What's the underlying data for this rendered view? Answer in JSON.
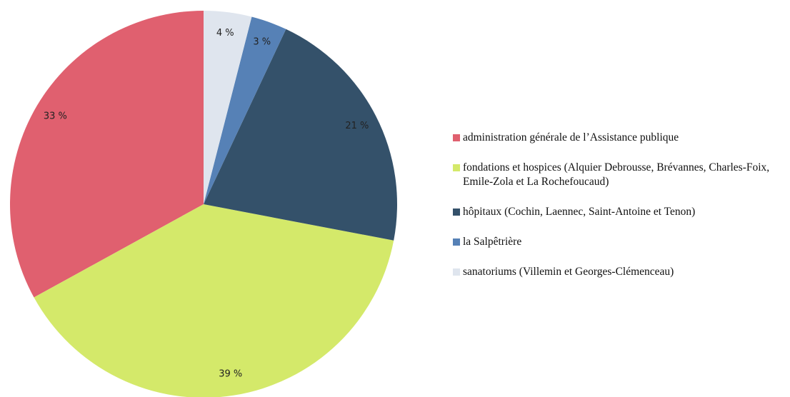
{
  "chart_data": {
    "type": "pie",
    "categories": [
      "administration générale de l’Assistance publique",
      "fondations et hospices (Alquier Debrousse, Brévannes, Charles-Foix, Emile-Zola et La Rochefoucaud)",
      "hôpitaux (Cochin, Laennec, Saint-Antoine et Tenon)",
      "la Salpêtrière",
      "sanatoriums (Villemin et Georges-Clémenceau)"
    ],
    "values": [
      33,
      39,
      21,
      3,
      4
    ],
    "value_labels": [
      "33 %",
      "39 %",
      "21 %",
      "3 %",
      "4 %"
    ],
    "colors": [
      "#e0606f",
      "#d4e96a",
      "#34516a",
      "#5681b6",
      "#dfe5ee"
    ],
    "direction": "counterclockwise",
    "legend": "right"
  }
}
